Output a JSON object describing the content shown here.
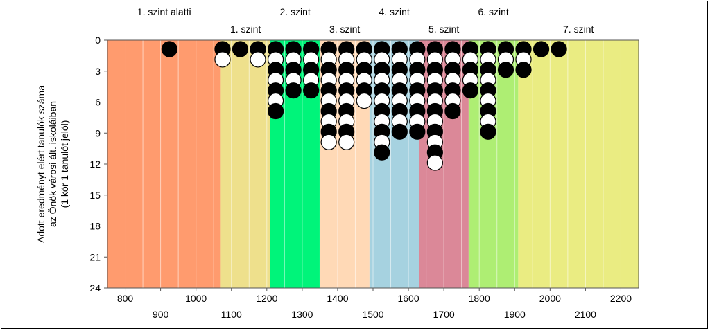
{
  "chart_data": {
    "type": "scatter",
    "ylabel_lines": [
      "Adott eredményt elért tanulók száma",
      "az Önök városi ált. iskoláiban",
      "(1 kör 1 tanulót jelöl)"
    ],
    "xlim": [
      750,
      2250
    ],
    "ylim": [
      24,
      0
    ],
    "y_ticks": [
      0,
      3,
      6,
      9,
      12,
      15,
      18,
      21,
      24
    ],
    "x_ticks_upper": [
      800,
      1000,
      1200,
      1400,
      1600,
      1800,
      2000,
      2200
    ],
    "x_ticks_lower": [
      900,
      1100,
      1300,
      1500,
      1700,
      1900,
      2100
    ],
    "bands": [
      {
        "label": "1. szint alatti",
        "from": 750,
        "to": 1070,
        "color": "#ff9b6e",
        "label_row": 0
      },
      {
        "label": "1. szint",
        "from": 1070,
        "to": 1210,
        "color": "#eee08c",
        "label_row": 1
      },
      {
        "label": "2. szint",
        "from": 1210,
        "to": 1350,
        "color": "#00f47a",
        "label_row": 0
      },
      {
        "label": "3. szint",
        "from": 1350,
        "to": 1490,
        "color": "#ffd9b6",
        "label_row": 1
      },
      {
        "label": "4. szint",
        "from": 1490,
        "to": 1630,
        "color": "#a6d2e0",
        "label_row": 0
      },
      {
        "label": "5. szint",
        "from": 1630,
        "to": 1770,
        "color": "#db8898",
        "label_row": 1
      },
      {
        "label": "6. szint",
        "from": 1770,
        "to": 1910,
        "color": "#aeee73",
        "label_row": 0
      },
      {
        "label": "7. szint",
        "from": 1910,
        "to": 2250,
        "color": "#eaec82",
        "label_row": 1
      }
    ],
    "columns": [
      {
        "x": 925,
        "count": 1
      },
      {
        "x": 1075,
        "count": 2
      },
      {
        "x": 1125,
        "count": 1
      },
      {
        "x": 1175,
        "count": 2
      },
      {
        "x": 1225,
        "count": 7
      },
      {
        "x": 1275,
        "count": 5
      },
      {
        "x": 1325,
        "count": 5
      },
      {
        "x": 1375,
        "count": 10
      },
      {
        "x": 1425,
        "count": 10
      },
      {
        "x": 1475,
        "count": 6
      },
      {
        "x": 1525,
        "count": 11
      },
      {
        "x": 1575,
        "count": 9
      },
      {
        "x": 1625,
        "count": 9
      },
      {
        "x": 1675,
        "count": 12
      },
      {
        "x": 1725,
        "count": 7
      },
      {
        "x": 1775,
        "count": 5
      },
      {
        "x": 1825,
        "count": 9
      },
      {
        "x": 1875,
        "count": 3
      },
      {
        "x": 1925,
        "count": 3
      },
      {
        "x": 1975,
        "count": 1
      },
      {
        "x": 2025,
        "count": 1
      }
    ],
    "grid": true,
    "marker_colors": {
      "odd": "#000000",
      "even": "#ffffff"
    }
  }
}
